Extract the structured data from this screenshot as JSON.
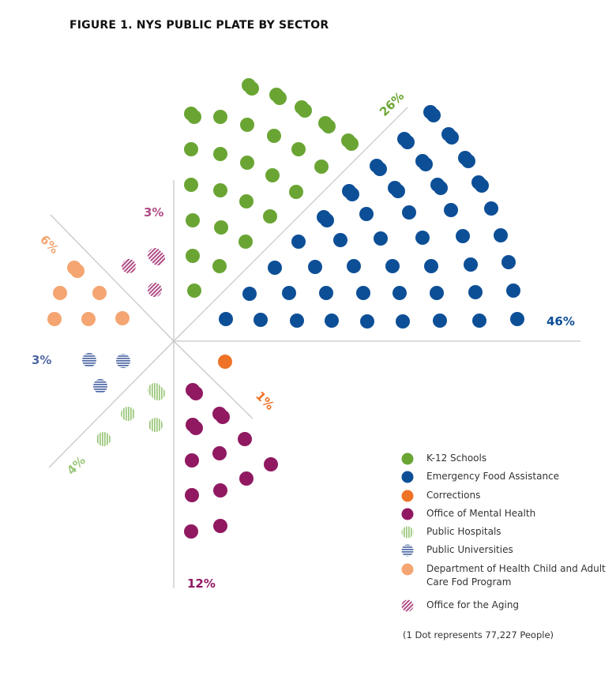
{
  "title": "FIGURE 1. NYS PUBLIC PLATE BY SECTOR",
  "footnote": "(1 Dot represents 77,227 People)",
  "chart_data": {
    "type": "dot-radial",
    "people_per_dot": 77227,
    "grid": false,
    "legend_position": "bottom-right",
    "series": [
      {
        "name": "K-12 Schools",
        "percent_label": "26%",
        "dots": 32,
        "color": "#6aa534",
        "pattern": "solid"
      },
      {
        "name": "Emergency Food Assistance",
        "percent_label": "46%",
        "dots": 56,
        "color": "#0d4f97",
        "pattern": "solid"
      },
      {
        "name": "Corrections",
        "percent_label": "1%",
        "dots": 1,
        "color": "#ee7326",
        "pattern": "solid"
      },
      {
        "name": "Office of Mental Health",
        "percent_label": "12%",
        "dots": 15,
        "color": "#901961",
        "pattern": "solid"
      },
      {
        "name": "Public Hospitals",
        "percent_label": "4%",
        "dots": 5,
        "color": "#9ac679",
        "pattern": "vertical"
      },
      {
        "name": "Public Universities",
        "percent_label": "3%",
        "dots": 3,
        "color": "#4f68a5",
        "pattern": "horizontal"
      },
      {
        "name": "Department of Health Child and Adult Care Fod Program",
        "percent_label": "6%",
        "dots": 7,
        "color": "#f4a571",
        "pattern": "solid"
      },
      {
        "name": "Office for the Aging",
        "percent_label": "3%",
        "dots": 4,
        "color": "#b04d86",
        "pattern": "diagonal"
      }
    ]
  },
  "legend": {
    "items": [
      {
        "label": "K-12 Schools",
        "icon": "dot"
      },
      {
        "label": "Emergency Food Assistance",
        "icon": "dot"
      },
      {
        "label": "Corrections",
        "icon": "dot"
      },
      {
        "label": "Office of Mental Health",
        "icon": "dot"
      },
      {
        "label": "Public Hospitals",
        "icon": "dot"
      },
      {
        "label": "Public Universities",
        "icon": "dot"
      },
      {
        "label": "Department of Health Child and Adult Care Fod Program",
        "icon": "dot"
      },
      {
        "label": "Office for the Aging",
        "icon": "dot"
      }
    ]
  }
}
